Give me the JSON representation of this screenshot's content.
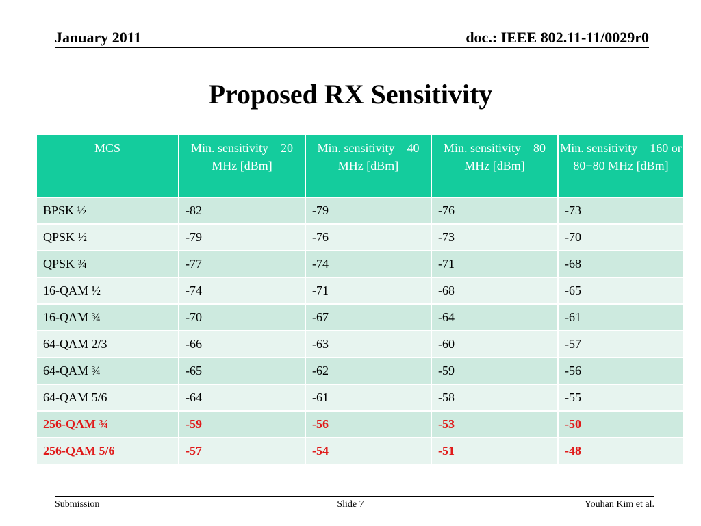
{
  "header": {
    "date": "January 2011",
    "doc_id": "doc.: IEEE 802.11-11/0029r0"
  },
  "slide_title": "Proposed RX Sensitivity",
  "table": {
    "columns": [
      "MCS",
      "Min. sensitivity – 20 MHz [dBm]",
      "Min. sensitivity – 40 MHz [dBm]",
      "Min. sensitivity – 80 MHz [dBm]",
      "Min. sensitivity – 160 or 80+80 MHz [dBm]"
    ],
    "rows": [
      {
        "mcs": "BPSK ½",
        "v20": "-82",
        "v40": "-79",
        "v80": "-76",
        "v160": "-73",
        "highlight": false
      },
      {
        "mcs": "QPSK ½",
        "v20": "-79",
        "v40": "-76",
        "v80": "-73",
        "v160": "-70",
        "highlight": false
      },
      {
        "mcs": "QPSK ¾",
        "v20": "-77",
        "v40": "-74",
        "v80": "-71",
        "v160": "-68",
        "highlight": false
      },
      {
        "mcs": "16-QAM ½",
        "v20": "-74",
        "v40": "-71",
        "v80": "-68",
        "v160": "-65",
        "highlight": false
      },
      {
        "mcs": "16-QAM ¾",
        "v20": "-70",
        "v40": "-67",
        "v80": "-64",
        "v160": "-61",
        "highlight": false
      },
      {
        "mcs": "64-QAM 2/3",
        "v20": "-66",
        "v40": "-63",
        "v80": "-60",
        "v160": "-57",
        "highlight": false
      },
      {
        "mcs": "64-QAM ¾",
        "v20": "-65",
        "v40": "-62",
        "v80": "-59",
        "v160": "-56",
        "highlight": false
      },
      {
        "mcs": "64-QAM 5/6",
        "v20": "-64",
        "v40": "-61",
        "v80": "-58",
        "v160": "-55",
        "highlight": false
      },
      {
        "mcs": "256-QAM ¾",
        "v20": "-59",
        "v40": "-56",
        "v80": "-53",
        "v160": "-50",
        "highlight": true
      },
      {
        "mcs": "256-QAM 5/6",
        "v20": "-57",
        "v40": "-54",
        "v80": "-51",
        "v160": "-48",
        "highlight": true
      }
    ]
  },
  "footer": {
    "left": "Submission",
    "center": "Slide 7",
    "right": "Youhan Kim et al."
  },
  "colors": {
    "header_fill": "#14cc9d",
    "row_dark": "#cdeadf",
    "row_light": "#e7f4ef",
    "highlight_text": "#e01a1a"
  }
}
